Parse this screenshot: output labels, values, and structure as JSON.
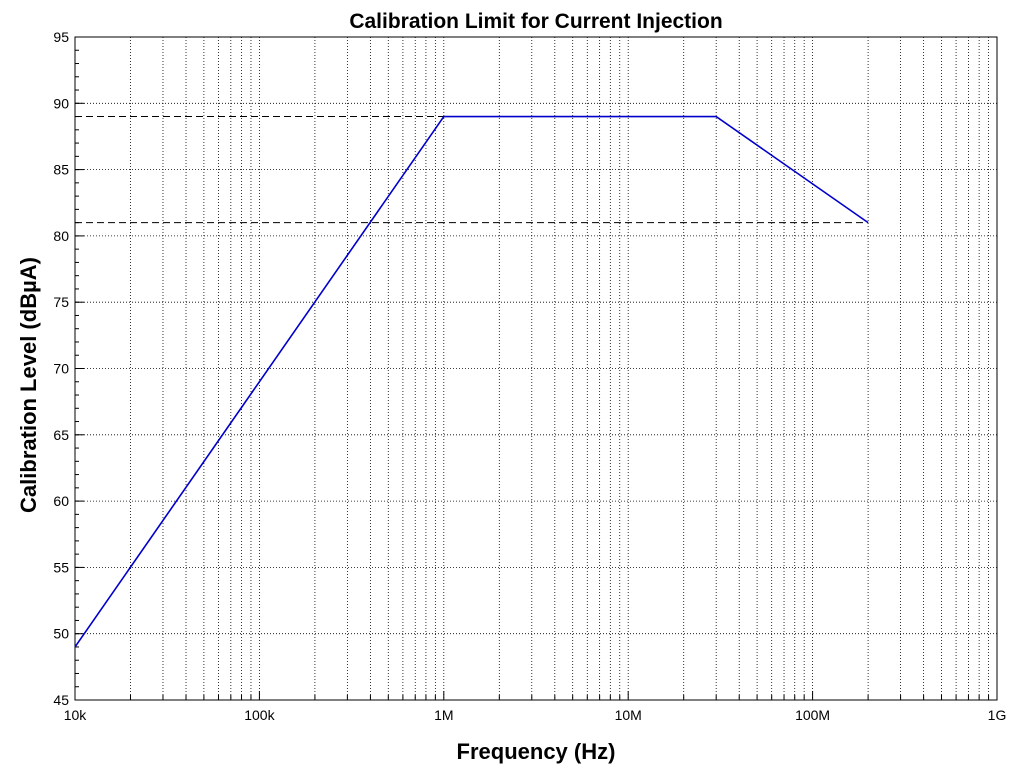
{
  "chart_data": {
    "type": "line",
    "title": "Calibration Limit for Current Injection",
    "xlabel": "Frequency (Hz)",
    "ylabel": "Calibration Level (dBµA)",
    "x": [
      10000,
      1000000,
      30000000,
      200000000
    ],
    "series": [
      {
        "color": "#0000cc",
        "values": [
          49,
          89,
          89,
          81
        ]
      }
    ],
    "hlines": [
      89,
      81
    ],
    "xscale": "log",
    "xlim": [
      10000,
      1000000000
    ],
    "xticks": [
      {
        "value": 10000,
        "label": "10k"
      },
      {
        "value": 100000,
        "label": "100k"
      },
      {
        "value": 1000000,
        "label": "1M"
      },
      {
        "value": 10000000,
        "label": "10M"
      },
      {
        "value": 100000000,
        "label": "100M"
      },
      {
        "value": 1000000000,
        "label": "1G"
      }
    ],
    "ylim": [
      45,
      95
    ],
    "yticks": [
      45,
      50,
      55,
      60,
      65,
      70,
      75,
      80,
      85,
      90,
      95
    ],
    "grid": true
  }
}
